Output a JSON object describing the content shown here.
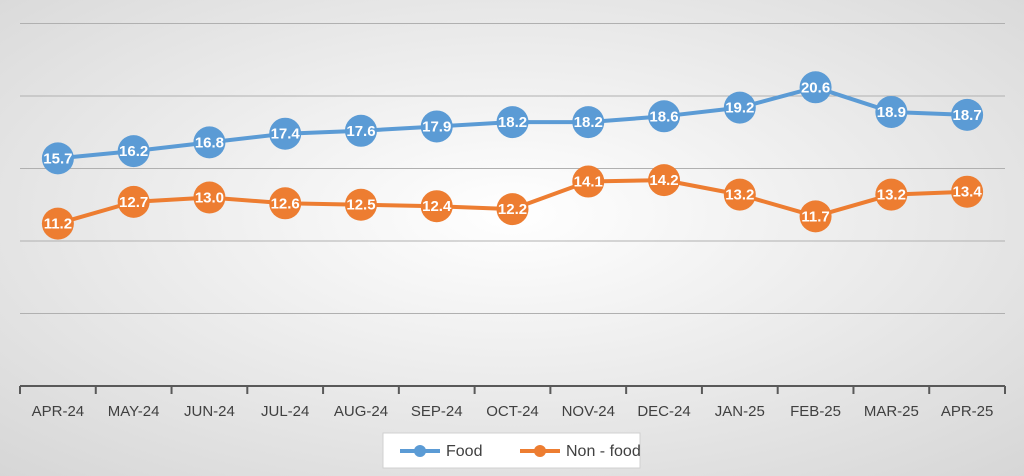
{
  "chart_data": {
    "type": "line",
    "categories": [
      "APR-24",
      "MAY-24",
      "JUN-24",
      "JUL-24",
      "AUG-24",
      "SEP-24",
      "OCT-24",
      "NOV-24",
      "DEC-24",
      "JAN-25",
      "FEB-25",
      "MAR-25",
      "APR-25"
    ],
    "series": [
      {
        "name": "Food",
        "color": "#5b9bd5",
        "values": [
          15.7,
          16.2,
          16.8,
          17.4,
          17.6,
          17.9,
          18.2,
          18.2,
          18.6,
          19.2,
          20.6,
          18.9,
          18.7
        ],
        "value_labels": [
          "15.7",
          "16.2",
          "16.8",
          "17.4",
          "17.6",
          "17.9",
          "18.2",
          "18.2",
          "18.6",
          "19.2",
          "20.6",
          "18.9",
          "18.7"
        ]
      },
      {
        "name": "Non - food",
        "color": "#ed7d31",
        "values": [
          11.2,
          12.7,
          13.0,
          12.6,
          12.5,
          12.4,
          12.2,
          14.1,
          14.2,
          13.2,
          11.7,
          13.2,
          13.4
        ],
        "value_labels": [
          "11.2",
          "12.7",
          "13.0",
          "12.6",
          "12.5",
          "12.4",
          "12.2",
          "14.1",
          "14.2",
          "13.2",
          "11.7",
          "13.2",
          "13.4"
        ]
      }
    ],
    "ylim": [
      0,
      25
    ],
    "yticks": [
      0,
      5,
      10,
      15,
      20,
      25
    ],
    "grid": true,
    "legend": "bottom"
  }
}
